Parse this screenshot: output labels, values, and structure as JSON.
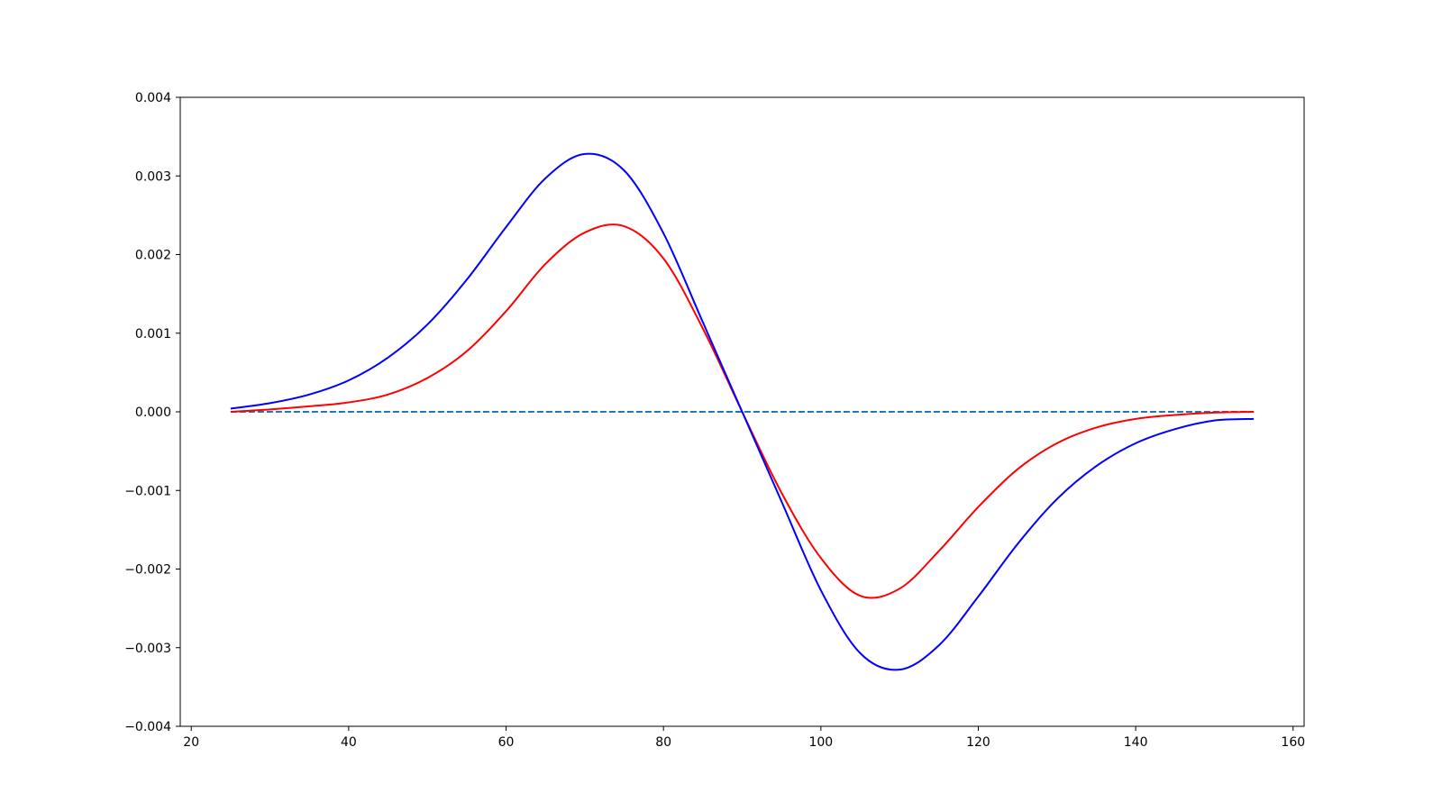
{
  "chart_data": {
    "type": "line",
    "title": "",
    "xlabel": "",
    "ylabel": "",
    "xlim": [
      18.6,
      161.4
    ],
    "ylim": [
      -0.004,
      0.004
    ],
    "grid": false,
    "x_ticks": [
      {
        "value": 20,
        "label": "20"
      },
      {
        "value": 40,
        "label": "40"
      },
      {
        "value": 60,
        "label": "60"
      },
      {
        "value": 80,
        "label": "80"
      },
      {
        "value": 100,
        "label": "100"
      },
      {
        "value": 120,
        "label": "120"
      },
      {
        "value": 140,
        "label": "140"
      },
      {
        "value": 160,
        "label": "160"
      }
    ],
    "y_ticks": [
      {
        "value": 0.004,
        "label": "0.004"
      },
      {
        "value": 0.003,
        "label": "0.003"
      },
      {
        "value": 0.002,
        "label": "0.002"
      },
      {
        "value": 0.001,
        "label": "0.001"
      },
      {
        "value": 0.0,
        "label": "0.000"
      },
      {
        "value": -0.001,
        "label": "−0.001"
      },
      {
        "value": -0.002,
        "label": "−0.002"
      },
      {
        "value": -0.003,
        "label": "−0.003"
      },
      {
        "value": -0.004,
        "label": "−0.004"
      }
    ],
    "x": [
      25,
      30,
      35,
      40,
      45,
      50,
      55,
      60,
      65,
      70,
      75,
      80,
      85,
      90,
      95,
      100,
      105,
      110,
      115,
      120,
      125,
      130,
      135,
      140,
      145,
      150,
      155
    ],
    "series": [
      {
        "color": "#0000ff",
        "style": "solid",
        "values": [
          4e-05,
          0.00011,
          0.00022,
          0.0004,
          0.00069,
          0.00111,
          0.00168,
          0.00235,
          0.00297,
          0.00328,
          0.00307,
          0.00227,
          0.00114,
          0.0,
          -0.00114,
          -0.00227,
          -0.00307,
          -0.00328,
          -0.00297,
          -0.00235,
          -0.00168,
          -0.00111,
          -0.00069,
          -0.0004,
          -0.00022,
          -0.00011,
          -9e-05
        ]
      },
      {
        "color": "#ff0000",
        "style": "solid",
        "values": [
          0.0,
          3e-05,
          7e-05,
          0.00012,
          0.00022,
          0.00043,
          0.00077,
          0.00128,
          0.00188,
          0.00228,
          0.00236,
          0.00195,
          0.00106,
          0.0,
          -0.00103,
          -0.00186,
          -0.00234,
          -0.00225,
          -0.00177,
          -0.00121,
          -0.00073,
          -0.0004,
          -0.0002,
          -9e-05,
          -4e-05,
          -1e-05,
          0.0
        ]
      },
      {
        "color": "#1f77b4",
        "style": "dashed",
        "values": [
          0,
          0,
          0,
          0,
          0,
          0,
          0,
          0,
          0,
          0,
          0,
          0,
          0,
          0,
          0,
          0,
          0,
          0,
          0,
          0,
          0,
          0,
          0,
          0,
          0,
          0,
          0
        ]
      }
    ]
  }
}
